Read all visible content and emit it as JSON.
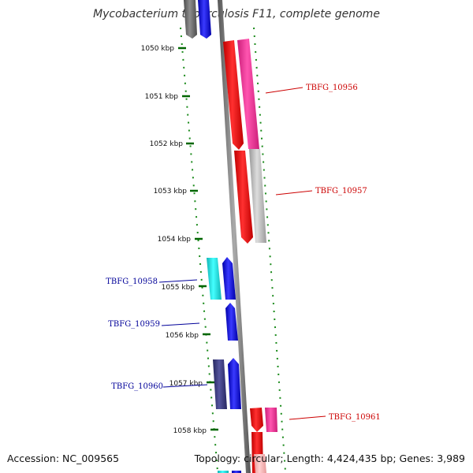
{
  "title": "Mycobacterium tuberculosis F11, complete genome",
  "footer": {
    "accession": "Accession: NC_009565",
    "topology": "Topology: circular; Length: 4,424,435 bp; Genes: 3,989"
  },
  "colors": {
    "forward_label": "#cc0000",
    "reverse_label": "#000099",
    "tick": "#006600",
    "backbone": "#888888",
    "red": "#ff1a1a",
    "pink": "#ff3399",
    "gray": "#bdbdbd",
    "cyan": "#17e5e5",
    "blue": "#1111ee",
    "navy": "#3a3a88",
    "darkgray": "#777777",
    "lightpink": "#ffb3b3"
  },
  "ticks": [
    {
      "kbp": 1050,
      "label": "1050 kbp"
    },
    {
      "kbp": 1051,
      "label": "1051 kbp"
    },
    {
      "kbp": 1052,
      "label": "1052 kbp"
    },
    {
      "kbp": 1053,
      "label": "1053 kbp"
    },
    {
      "kbp": 1054,
      "label": "1054 kbp"
    },
    {
      "kbp": 1055,
      "label": "1055 kbp"
    },
    {
      "kbp": 1056,
      "label": "1056 kbp"
    },
    {
      "kbp": 1057,
      "label": "1057 kbp"
    },
    {
      "kbp": 1058,
      "label": "1058 kbp"
    }
  ],
  "genes": [
    {
      "label": "TBFG_10956",
      "strand": "forward"
    },
    {
      "label": "TBFG_10957",
      "strand": "forward"
    },
    {
      "label": "TBFG_10958",
      "strand": "reverse"
    },
    {
      "label": "TBFG_10959",
      "strand": "reverse"
    },
    {
      "label": "TBFG_10960",
      "strand": "reverse"
    },
    {
      "label": "TBFG_10961",
      "strand": "forward"
    }
  ]
}
